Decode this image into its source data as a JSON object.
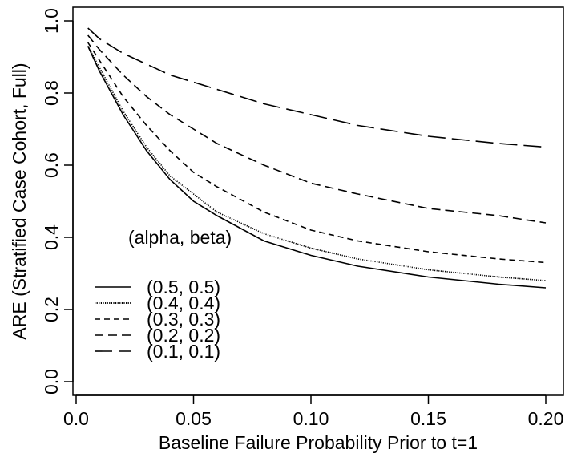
{
  "chart_data": {
    "type": "line",
    "title": "",
    "xlabel": "Baseline Failure Probability Prior to t=1",
    "ylabel": "ARE (Stratified Case Cohort, Full)",
    "xlim": [
      0.0,
      0.2
    ],
    "ylim": [
      0.0,
      1.0
    ],
    "x_ticks": [
      "0.0",
      "0.05",
      "0.10",
      "0.15",
      "0.20"
    ],
    "y_ticks": [
      "0.0",
      "0.2",
      "0.4",
      "0.6",
      "0.8",
      "1.0"
    ],
    "grid": false,
    "legend": {
      "title": "(alpha, beta)",
      "placement": "bottom-left"
    },
    "series": [
      {
        "name": "(0.5, 0.5)",
        "dash": "solid",
        "x": [
          0.005,
          0.01,
          0.02,
          0.03,
          0.04,
          0.05,
          0.06,
          0.08,
          0.1,
          0.12,
          0.15,
          0.18,
          0.2
        ],
        "y": [
          0.93,
          0.86,
          0.74,
          0.64,
          0.56,
          0.5,
          0.46,
          0.39,
          0.35,
          0.32,
          0.29,
          0.27,
          0.26
        ]
      },
      {
        "name": "(0.4, 0.4)",
        "dash": "dotted",
        "x": [
          0.005,
          0.01,
          0.02,
          0.03,
          0.04,
          0.05,
          0.06,
          0.08,
          0.1,
          0.12,
          0.15,
          0.18,
          0.2
        ],
        "y": [
          0.93,
          0.87,
          0.75,
          0.65,
          0.57,
          0.52,
          0.47,
          0.41,
          0.37,
          0.34,
          0.31,
          0.29,
          0.28
        ]
      },
      {
        "name": "(0.3, 0.3)",
        "dash": "short-dash",
        "x": [
          0.005,
          0.01,
          0.02,
          0.03,
          0.04,
          0.05,
          0.06,
          0.08,
          0.1,
          0.12,
          0.15,
          0.18,
          0.2
        ],
        "y": [
          0.94,
          0.89,
          0.79,
          0.71,
          0.64,
          0.58,
          0.54,
          0.47,
          0.42,
          0.39,
          0.36,
          0.34,
          0.33
        ]
      },
      {
        "name": "(0.2, 0.2)",
        "dash": "dash",
        "x": [
          0.005,
          0.01,
          0.02,
          0.03,
          0.04,
          0.05,
          0.06,
          0.08,
          0.1,
          0.12,
          0.15,
          0.18,
          0.2
        ],
        "y": [
          0.96,
          0.92,
          0.85,
          0.79,
          0.74,
          0.7,
          0.66,
          0.6,
          0.55,
          0.52,
          0.48,
          0.46,
          0.44
        ]
      },
      {
        "name": "(0.1, 0.1)",
        "dash": "long-dash",
        "x": [
          0.005,
          0.01,
          0.02,
          0.03,
          0.04,
          0.05,
          0.06,
          0.08,
          0.1,
          0.12,
          0.15,
          0.18,
          0.2
        ],
        "y": [
          0.98,
          0.95,
          0.91,
          0.88,
          0.85,
          0.83,
          0.81,
          0.77,
          0.74,
          0.71,
          0.68,
          0.66,
          0.65
        ]
      }
    ]
  }
}
